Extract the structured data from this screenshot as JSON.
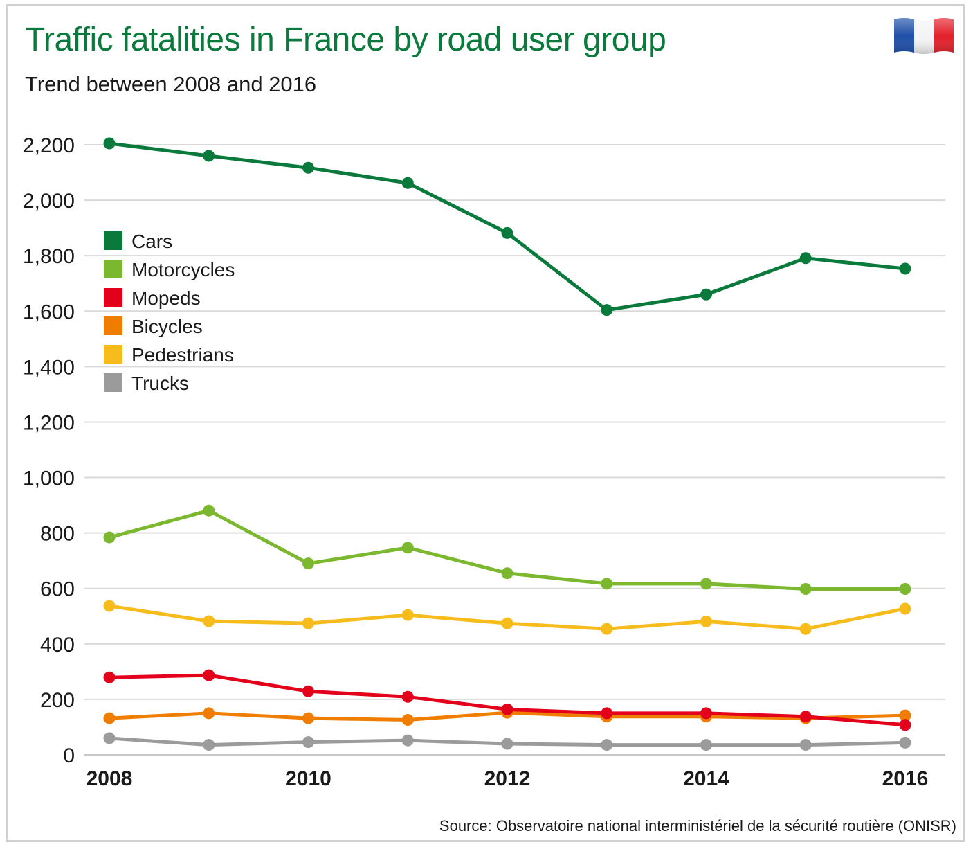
{
  "header": {
    "title": "Traffic fatalities in France by road user group",
    "subtitle": "Trend between 2008 and 2016",
    "source": "Source: Observatoire national interministériel de la sécurité routière (ONISR)",
    "flag_icon": "france-flag-icon"
  },
  "chart_data": {
    "type": "line",
    "title": "Traffic fatalities in France by road user group",
    "subtitle": "Trend between 2008 and 2016",
    "xlabel": "",
    "ylabel": "",
    "x": [
      2008,
      2009,
      2010,
      2011,
      2012,
      2013,
      2014,
      2015,
      2016
    ],
    "xticks": [
      "2008",
      "2010",
      "2012",
      "2014",
      "2016"
    ],
    "yticks": [
      0,
      200,
      400,
      600,
      800,
      1000,
      1200,
      1400,
      1600,
      1800,
      2000,
      2200
    ],
    "ytick_labels": [
      "0",
      "200",
      "400",
      "600",
      "800",
      "1,000",
      "1,200",
      "1,400",
      "1,600",
      "1,800",
      "2,000",
      "2,200"
    ],
    "ylim": [
      0,
      2250
    ],
    "grid": true,
    "legend_position": "upper-left",
    "series": [
      {
        "name": "Cars",
        "color": "#0a7a3c",
        "values": [
          2205,
          2160,
          2117,
          2062,
          1882,
          1604,
          1660,
          1791,
          1753
        ]
      },
      {
        "name": "Motorcycles",
        "color": "#7cb82f",
        "values": [
          784,
          881,
          690,
          747,
          655,
          617,
          617,
          598,
          598
        ]
      },
      {
        "name": "Mopeds",
        "color": "#e3001b",
        "values": [
          279,
          287,
          229,
          209,
          164,
          150,
          150,
          138,
          108
        ]
      },
      {
        "name": "Bicycles",
        "color": "#ef7d00",
        "values": [
          132,
          150,
          132,
          126,
          152,
          138,
          138,
          132,
          142
        ]
      },
      {
        "name": "Pedestrians",
        "color": "#f5bc1c",
        "values": [
          537,
          482,
          474,
          504,
          474,
          454,
          481,
          454,
          527
        ]
      },
      {
        "name": "Trucks",
        "color": "#9b9b9b",
        "values": [
          60,
          36,
          46,
          52,
          40,
          36,
          36,
          36,
          44
        ]
      }
    ]
  }
}
